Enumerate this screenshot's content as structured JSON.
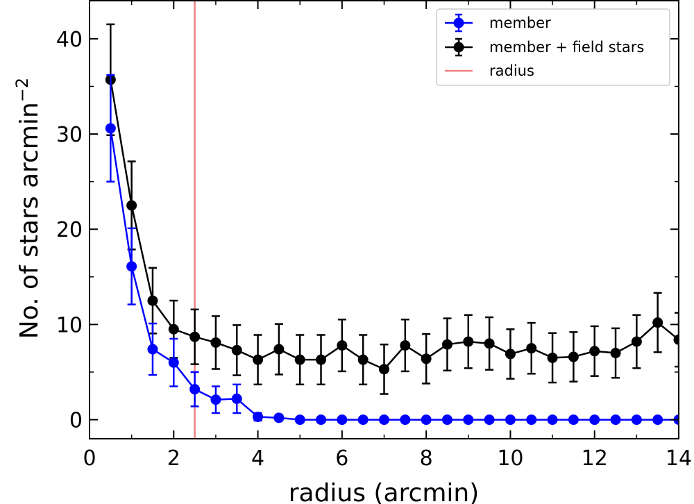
{
  "chart_data": {
    "type": "line",
    "xlabel": "radius (arcmin)",
    "ylabel": "No. of stars  arcmin",
    "ylabel_superscript": "−2",
    "xlim": [
      0,
      14
    ],
    "ylim": [
      -2,
      44
    ],
    "xticks": [
      0,
      2,
      4,
      6,
      8,
      10,
      12,
      14
    ],
    "yticks": [
      0,
      10,
      20,
      30,
      40
    ],
    "grid": false,
    "legend_position": "top-right",
    "series": [
      {
        "name": "member",
        "color": "#0000ff",
        "x": [
          0.5,
          1.0,
          1.5,
          2.0,
          2.5,
          3.0,
          3.5,
          4.0,
          4.5,
          5.0,
          5.5,
          6.0,
          6.5,
          7.0,
          7.5,
          8.0,
          8.5,
          9.0,
          9.5,
          10.0,
          10.5,
          11.0,
          11.5,
          12.0,
          12.5,
          13.0,
          13.5,
          14.0
        ],
        "y": [
          30.6,
          16.1,
          7.4,
          6.0,
          3.2,
          2.1,
          2.2,
          0.3,
          0.2,
          0,
          0,
          0,
          0,
          0,
          0,
          0,
          0,
          0,
          0,
          0,
          0,
          0,
          0,
          0,
          0,
          0,
          0,
          0
        ],
        "yerr": [
          5.6,
          4.0,
          2.7,
          2.5,
          1.8,
          1.4,
          1.5,
          0.4,
          0.3,
          0,
          0,
          0,
          0,
          0,
          0,
          0,
          0,
          0,
          0,
          0,
          0,
          0,
          0,
          0,
          0,
          0,
          0,
          0
        ]
      },
      {
        "name": "member + field stars",
        "color": "#000000",
        "x": [
          0.5,
          1.0,
          1.5,
          2.0,
          2.5,
          3.0,
          3.5,
          4.0,
          4.5,
          5.0,
          5.5,
          6.0,
          6.5,
          7.0,
          7.5,
          8.0,
          8.5,
          9.0,
          9.5,
          10.0,
          10.5,
          11.0,
          11.5,
          12.0,
          12.5,
          13.0,
          13.5,
          14.0
        ],
        "y": [
          35.7,
          22.5,
          12.5,
          9.5,
          8.7,
          8.1,
          7.3,
          6.3,
          7.4,
          6.3,
          6.3,
          7.8,
          6.3,
          5.3,
          7.8,
          6.4,
          7.9,
          8.2,
          8.0,
          6.9,
          7.5,
          6.5,
          6.6,
          7.2,
          7.0,
          8.2,
          10.2,
          8.4
        ]
      }
    ],
    "vertical_line": {
      "name": "radius",
      "x": 2.5,
      "color": "#f08080"
    }
  }
}
